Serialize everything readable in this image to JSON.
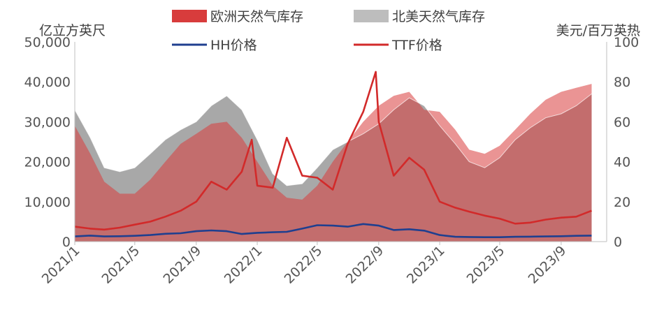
{
  "chart_data": {
    "type": "area",
    "left_axis_label": "亿立方英尺",
    "right_axis_label": "美元/百万英热",
    "y_left": {
      "min": 0,
      "max": 50000,
      "ticks": [
        0,
        10000,
        20000,
        30000,
        40000,
        50000
      ],
      "tick_labels": [
        "0",
        "10,000",
        "20,000",
        "30,000",
        "40,000",
        "50,000"
      ]
    },
    "y_right": {
      "min": 0,
      "max": 100,
      "ticks": [
        0,
        20,
        40,
        60,
        80,
        100
      ],
      "tick_labels": [
        "0",
        "20",
        "40",
        "60",
        "80",
        "100"
      ]
    },
    "x_ticks": [
      "2021/1",
      "2021/5",
      "2021/9",
      "2022/1",
      "2022/5",
      "2022/9",
      "2023/1",
      "2023/5",
      "2023/9"
    ],
    "x_range": [
      "2021/1",
      "2023/12"
    ],
    "legend": [
      "欧洲天然气库存",
      "北美天然气库存",
      "HH价格",
      "TTF价格"
    ],
    "colors": {
      "europe_fill": "#d83c3c",
      "northamerica_fill": "#a8a8a8",
      "hh_line": "#1f3f8f",
      "ttf_line": "#d22a2a",
      "axis_line": "#bfbfbf",
      "text": "#555555"
    },
    "series": [
      {
        "name": "欧洲天然气库存",
        "axis": "left",
        "kind": "area",
        "points": [
          [
            "2021/1",
            29000
          ],
          [
            "2021/2",
            22000
          ],
          [
            "2021/3",
            15000
          ],
          [
            "2021/4",
            12000
          ],
          [
            "2021/5",
            12000
          ],
          [
            "2021/6",
            15500
          ],
          [
            "2021/7",
            20000
          ],
          [
            "2021/8",
            24500
          ],
          [
            "2021/9",
            27000
          ],
          [
            "2021/10",
            29500
          ],
          [
            "2021/11",
            30000
          ],
          [
            "2021/12",
            26000
          ],
          [
            "2022/1",
            20000
          ],
          [
            "2022/2",
            14000
          ],
          [
            "2022/3",
            11000
          ],
          [
            "2022/4",
            10500
          ],
          [
            "2022/5",
            14000
          ],
          [
            "2022/6",
            20000
          ],
          [
            "2022/7",
            25000
          ],
          [
            "2022/8",
            30000
          ],
          [
            "2022/9",
            34000
          ],
          [
            "2022/10",
            36500
          ],
          [
            "2022/11",
            37500
          ],
          [
            "2022/12",
            33000
          ],
          [
            "2023/1",
            32500
          ],
          [
            "2023/2",
            28000
          ],
          [
            "2023/3",
            23000
          ],
          [
            "2023/4",
            22000
          ],
          [
            "2023/5",
            24000
          ],
          [
            "2023/6",
            28000
          ],
          [
            "2023/7",
            32000
          ],
          [
            "2023/8",
            35500
          ],
          [
            "2023/9",
            37500
          ],
          [
            "2023/10",
            38500
          ],
          [
            "2023/11",
            39500
          ]
        ]
      },
      {
        "name": "北美天然气库存",
        "axis": "left",
        "kind": "area",
        "points": [
          [
            "2021/1",
            33000
          ],
          [
            "2021/2",
            26000
          ],
          [
            "2021/3",
            18500
          ],
          [
            "2021/4",
            17500
          ],
          [
            "2021/5",
            18500
          ],
          [
            "2021/6",
            22000
          ],
          [
            "2021/7",
            25500
          ],
          [
            "2021/8",
            28000
          ],
          [
            "2021/9",
            30000
          ],
          [
            "2021/10",
            34000
          ],
          [
            "2021/11",
            36500
          ],
          [
            "2021/12",
            33000
          ],
          [
            "2022/1",
            25500
          ],
          [
            "2022/2",
            17000
          ],
          [
            "2022/3",
            14000
          ],
          [
            "2022/4",
            14500
          ],
          [
            "2022/5",
            18500
          ],
          [
            "2022/6",
            23000
          ],
          [
            "2022/7",
            25000
          ],
          [
            "2022/8",
            27000
          ],
          [
            "2022/9",
            29500
          ],
          [
            "2022/10",
            33000
          ],
          [
            "2022/11",
            36000
          ],
          [
            "2022/12",
            34000
          ],
          [
            "2023/1",
            29000
          ],
          [
            "2023/2",
            24500
          ],
          [
            "2023/3",
            20000
          ],
          [
            "2023/4",
            18500
          ],
          [
            "2023/5",
            21000
          ],
          [
            "2023/6",
            25500
          ],
          [
            "2023/7",
            28500
          ],
          [
            "2023/8",
            31000
          ],
          [
            "2023/9",
            32000
          ],
          [
            "2023/10",
            34000
          ],
          [
            "2023/11",
            37000
          ]
        ]
      },
      {
        "name": "HH价格",
        "axis": "right",
        "kind": "line",
        "points": [
          [
            "2021/1",
            2.6
          ],
          [
            "2021/2",
            3.0
          ],
          [
            "2021/3",
            2.6
          ],
          [
            "2021/4",
            2.7
          ],
          [
            "2021/5",
            2.9
          ],
          [
            "2021/6",
            3.3
          ],
          [
            "2021/7",
            3.9
          ],
          [
            "2021/8",
            4.2
          ],
          [
            "2021/9",
            5.2
          ],
          [
            "2021/10",
            5.6
          ],
          [
            "2021/11",
            5.2
          ],
          [
            "2021/12",
            3.8
          ],
          [
            "2022/1",
            4.4
          ],
          [
            "2022/2",
            4.7
          ],
          [
            "2022/3",
            4.9
          ],
          [
            "2022/4",
            6.5
          ],
          [
            "2022/5",
            8.2
          ],
          [
            "2022/6",
            8.0
          ],
          [
            "2022/7",
            7.5
          ],
          [
            "2022/8",
            8.8
          ],
          [
            "2022/9",
            8.0
          ],
          [
            "2022/10",
            5.8
          ],
          [
            "2022/11",
            6.2
          ],
          [
            "2022/12",
            5.5
          ],
          [
            "2023/1",
            3.3
          ],
          [
            "2023/2",
            2.4
          ],
          [
            "2023/3",
            2.3
          ],
          [
            "2023/4",
            2.2
          ],
          [
            "2023/5",
            2.2
          ],
          [
            "2023/6",
            2.4
          ],
          [
            "2023/7",
            2.5
          ],
          [
            "2023/8",
            2.6
          ],
          [
            "2023/9",
            2.7
          ],
          [
            "2023/10",
            2.9
          ],
          [
            "2023/11",
            3.0
          ]
        ]
      },
      {
        "name": "TTF价格",
        "axis": "right",
        "kind": "line",
        "points": [
          [
            "2021/1",
            7.5
          ],
          [
            "2021/2",
            6.5
          ],
          [
            "2021/3",
            6.0
          ],
          [
            "2021/4",
            7.0
          ],
          [
            "2021/5",
            8.5
          ],
          [
            "2021/6",
            10.0
          ],
          [
            "2021/7",
            12.5
          ],
          [
            "2021/8",
            15.5
          ],
          [
            "2021/9",
            20.0
          ],
          [
            "2021/10",
            30.0
          ],
          [
            "2021/11",
            26.0
          ],
          [
            "2021/12",
            35.0
          ],
          [
            "2021/12/21",
            51.0
          ],
          [
            "2022/1",
            28.0
          ],
          [
            "2022/2",
            27.0
          ],
          [
            "2022/3",
            52.0
          ],
          [
            "2022/4",
            33.0
          ],
          [
            "2022/5",
            32.0
          ],
          [
            "2022/6",
            26.0
          ],
          [
            "2022/7",
            49.0
          ],
          [
            "2022/8",
            65.0
          ],
          [
            "2022/8/26",
            85.0
          ],
          [
            "2022/9",
            60.0
          ],
          [
            "2022/10",
            33.0
          ],
          [
            "2022/11",
            42.0
          ],
          [
            "2022/12",
            36.0
          ],
          [
            "2023/1",
            20.0
          ],
          [
            "2023/2",
            17.0
          ],
          [
            "2023/3",
            15.0
          ],
          [
            "2023/4",
            13.0
          ],
          [
            "2023/5",
            11.5
          ],
          [
            "2023/6",
            9.0
          ],
          [
            "2023/7",
            9.5
          ],
          [
            "2023/8",
            11.0
          ],
          [
            "2023/9",
            12.0
          ],
          [
            "2023/10",
            12.5
          ],
          [
            "2023/11",
            15.5
          ]
        ]
      }
    ]
  }
}
